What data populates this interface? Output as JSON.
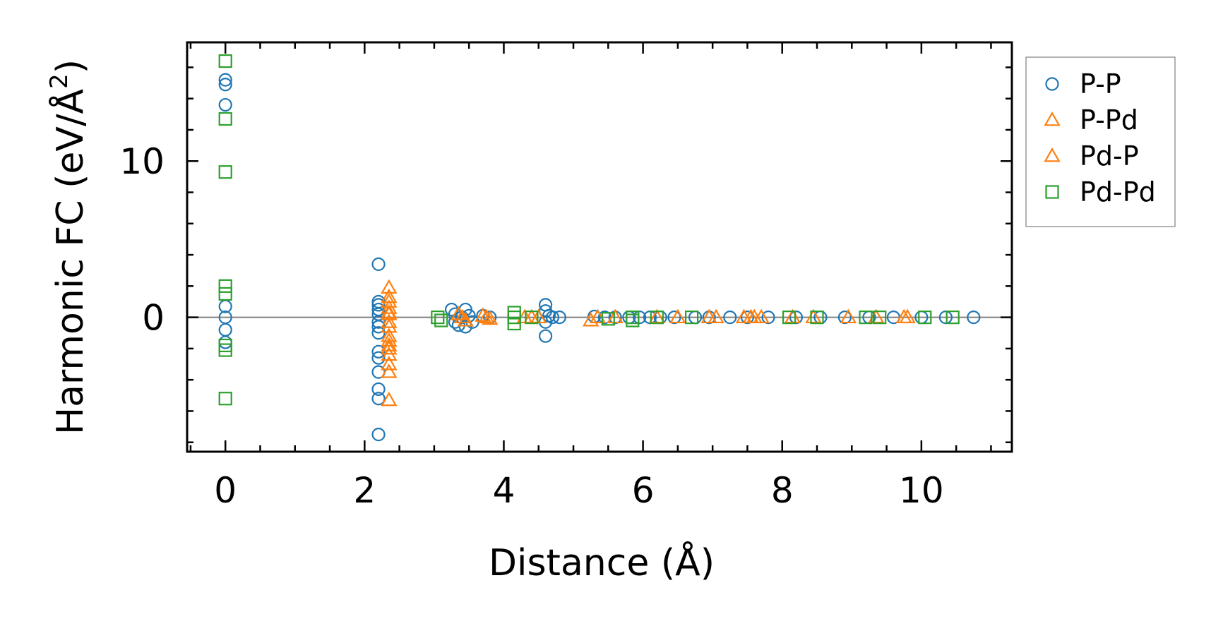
{
  "chart_data": {
    "type": "scatter",
    "title": "",
    "xlabel": "Distance (Å)",
    "ylabel_main": "Harmonic FC (eV/Å",
    "ylabel_sup": "2",
    "ylabel_close": ")",
    "xlim": [
      -0.55,
      11.3
    ],
    "ylim": [
      -8.6,
      17.6
    ],
    "xticks": [
      0,
      2,
      4,
      6,
      8,
      10
    ],
    "xtick_labels": [
      "0",
      "2",
      "4",
      "6",
      "8",
      "10"
    ],
    "yticks": [
      0,
      10
    ],
    "ytick_labels": [
      "0",
      "10"
    ],
    "x_minor_step": 0.5,
    "y_minor_step": 2,
    "zero_line": true,
    "legend_position": "outside-right",
    "series": [
      {
        "name": "P-P",
        "marker": "circle",
        "color": "#1f77b4",
        "points": [
          [
            0,
            15.2
          ],
          [
            0,
            14.9
          ],
          [
            0,
            13.6
          ],
          [
            0,
            0.7
          ],
          [
            0,
            0.0
          ],
          [
            0,
            -0.8
          ],
          [
            0,
            -1.6
          ],
          [
            2.2,
            3.4
          ],
          [
            2.2,
            1.0
          ],
          [
            2.2,
            0.8
          ],
          [
            2.2,
            0.5
          ],
          [
            2.2,
            0.2
          ],
          [
            2.2,
            -0.3
          ],
          [
            2.2,
            -0.6
          ],
          [
            2.2,
            -1.0
          ],
          [
            2.2,
            -2.2
          ],
          [
            2.2,
            -2.6
          ],
          [
            2.2,
            -3.5
          ],
          [
            2.2,
            -4.6
          ],
          [
            2.2,
            -5.2
          ],
          [
            2.2,
            -7.5
          ],
          [
            3.25,
            0.5
          ],
          [
            3.3,
            0.2
          ],
          [
            3.3,
            -0.3
          ],
          [
            3.35,
            -0.5
          ],
          [
            3.4,
            0.0
          ],
          [
            3.45,
            0.5
          ],
          [
            3.45,
            -0.6
          ],
          [
            3.5,
            0.1
          ],
          [
            3.55,
            -0.3
          ],
          [
            3.7,
            0.1
          ],
          [
            3.8,
            0.0
          ],
          [
            4.6,
            0.8
          ],
          [
            4.6,
            0.4
          ],
          [
            4.65,
            0.1
          ],
          [
            4.6,
            -0.3
          ],
          [
            4.6,
            -1.2
          ],
          [
            4.7,
            0.0
          ],
          [
            4.8,
            0.0
          ],
          [
            5.3,
            0.05
          ],
          [
            5.45,
            0.0
          ],
          [
            5.6,
            0.0
          ],
          [
            5.8,
            0.0
          ],
          [
            5.95,
            0.0
          ],
          [
            6.1,
            0.0
          ],
          [
            6.25,
            0.0
          ],
          [
            6.45,
            0.0
          ],
          [
            6.75,
            0.0
          ],
          [
            6.95,
            0.0
          ],
          [
            7.25,
            0.0
          ],
          [
            7.5,
            0.0
          ],
          [
            7.8,
            0.0
          ],
          [
            8.2,
            0.0
          ],
          [
            8.55,
            0.0
          ],
          [
            8.9,
            0.0
          ],
          [
            9.25,
            0.0
          ],
          [
            9.6,
            0.0
          ],
          [
            10.0,
            0.0
          ],
          [
            10.35,
            0.0
          ],
          [
            10.75,
            0.0
          ]
        ]
      },
      {
        "name": "P-Pd",
        "marker": "triangle",
        "color": "#ff7f0e",
        "points": [
          [
            2.35,
            1.9
          ],
          [
            2.35,
            1.0
          ],
          [
            2.35,
            0.6
          ],
          [
            2.35,
            0.2
          ],
          [
            2.35,
            -0.6
          ],
          [
            2.35,
            -1.2
          ],
          [
            2.35,
            -1.8
          ],
          [
            2.35,
            -2.4
          ],
          [
            2.35,
            -3.0
          ],
          [
            2.35,
            -3.5
          ],
          [
            2.35,
            -5.3
          ],
          [
            3.35,
            0.2
          ],
          [
            3.45,
            -0.2
          ],
          [
            3.7,
            0.1
          ],
          [
            3.8,
            -0.1
          ],
          [
            4.3,
            0.0
          ],
          [
            4.5,
            0.0
          ],
          [
            5.25,
            -0.2
          ],
          [
            5.6,
            0.0
          ],
          [
            6.2,
            0.0
          ],
          [
            6.95,
            0.0
          ],
          [
            7.45,
            0.0
          ],
          [
            7.6,
            0.0
          ],
          [
            7.7,
            0.0
          ],
          [
            8.15,
            0.0
          ],
          [
            8.95,
            0.0
          ],
          [
            9.75,
            0.0
          ]
        ]
      },
      {
        "name": "Pd-P",
        "marker": "triangle",
        "color": "#ff7f0e",
        "points": [
          [
            2.35,
            1.3
          ],
          [
            2.35,
            0.3
          ],
          [
            2.35,
            -0.3
          ],
          [
            2.35,
            -1.5
          ],
          [
            2.35,
            -2.0
          ],
          [
            3.4,
            0.0
          ],
          [
            3.75,
            0.0
          ],
          [
            4.4,
            0.0
          ],
          [
            5.35,
            0.0
          ],
          [
            6.5,
            0.0
          ],
          [
            7.05,
            0.0
          ],
          [
            7.55,
            0.0
          ],
          [
            8.45,
            0.0
          ],
          [
            9.35,
            0.0
          ],
          [
            9.8,
            0.0
          ]
        ]
      },
      {
        "name": "Pd-Pd",
        "marker": "square",
        "color": "#2ca02c",
        "points": [
          [
            0,
            16.4
          ],
          [
            0,
            12.7
          ],
          [
            0,
            9.3
          ],
          [
            0,
            2.0
          ],
          [
            0,
            1.5
          ],
          [
            0,
            -1.8
          ],
          [
            0,
            -2.1
          ],
          [
            0,
            -5.2
          ],
          [
            3.05,
            0.0
          ],
          [
            3.1,
            -0.2
          ],
          [
            4.15,
            0.3
          ],
          [
            4.15,
            0.0
          ],
          [
            4.15,
            -0.4
          ],
          [
            4.4,
            0.0
          ],
          [
            5.5,
            -0.1
          ],
          [
            5.85,
            0.0
          ],
          [
            5.85,
            -0.2
          ],
          [
            6.2,
            0.0
          ],
          [
            6.7,
            0.0
          ],
          [
            8.1,
            0.0
          ],
          [
            8.5,
            0.0
          ],
          [
            9.2,
            0.0
          ],
          [
            9.4,
            0.0
          ],
          [
            10.05,
            0.0
          ],
          [
            10.45,
            0.0
          ]
        ]
      }
    ]
  }
}
